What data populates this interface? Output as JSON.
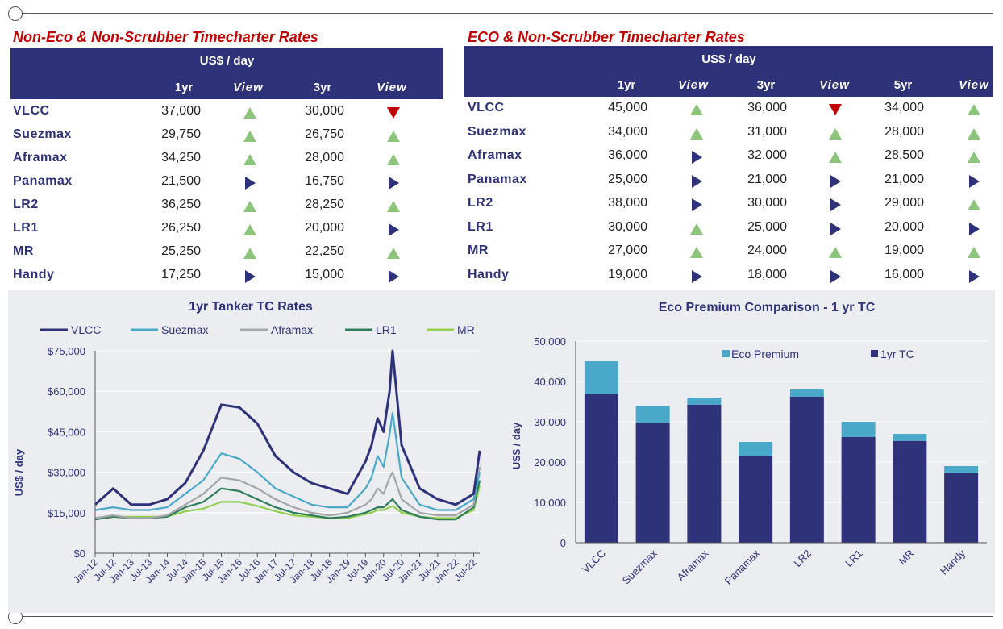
{
  "left_title": "Non-Eco & Non-Scrubber Timecharter Rates",
  "right_title": "ECO & Non-Scrubber Timecharter Rates",
  "unit": "US$ / day",
  "left_headers": [
    "1yr",
    "View",
    "3yr",
    "View"
  ],
  "right_headers": [
    "1yr",
    "View",
    "3yr",
    "View",
    "5yr",
    "View"
  ],
  "colors": {
    "navy": "#2e3278",
    "up": "#8bc47a",
    "down": "#c00000",
    "eco": "#4aa8c8"
  },
  "left_rows": [
    {
      "name": "VLCC",
      "y1": "37,000",
      "v1": "up",
      "y3": "30,000",
      "v3": "down"
    },
    {
      "name": "Suezmax",
      "y1": "29,750",
      "v1": "up",
      "y3": "26,750",
      "v3": "up"
    },
    {
      "name": "Aframax",
      "y1": "34,250",
      "v1": "up",
      "y3": "28,000",
      "v3": "up"
    },
    {
      "name": "Panamax",
      "y1": "21,500",
      "v1": "flat",
      "y3": "16,750",
      "v3": "flat"
    },
    {
      "name": "LR2",
      "y1": "36,250",
      "v1": "up",
      "y3": "28,250",
      "v3": "up"
    },
    {
      "name": "LR1",
      "y1": "26,250",
      "v1": "up",
      "y3": "20,000",
      "v3": "flat"
    },
    {
      "name": "MR",
      "y1": "25,250",
      "v1": "up",
      "y3": "22,250",
      "v3": "up"
    },
    {
      "name": "Handy",
      "y1": "17,250",
      "v1": "flat",
      "y3": "15,000",
      "v3": "flat"
    }
  ],
  "right_rows": [
    {
      "name": "VLCC",
      "y1": "45,000",
      "v1": "up",
      "y3": "36,000",
      "v3": "down",
      "y5": "34,000",
      "v5": "up"
    },
    {
      "name": "Suezmax",
      "y1": "34,000",
      "v1": "up",
      "y3": "31,000",
      "v3": "up",
      "y5": "28,000",
      "v5": "up"
    },
    {
      "name": "Aframax",
      "y1": "36,000",
      "v1": "flat",
      "y3": "32,000",
      "v3": "up",
      "y5": "28,500",
      "v5": "up"
    },
    {
      "name": "Panamax",
      "y1": "25,000",
      "v1": "flat",
      "y3": "21,000",
      "v3": "flat",
      "y5": "21,000",
      "v5": "flat"
    },
    {
      "name": "LR2",
      "y1": "38,000",
      "v1": "flat",
      "y3": "30,000",
      "v3": "flat",
      "y5": "29,000",
      "v5": "up"
    },
    {
      "name": "LR1",
      "y1": "30,000",
      "v1": "up",
      "y3": "25,000",
      "v3": "flat",
      "y5": "20,000",
      "v5": "flat"
    },
    {
      "name": "MR",
      "y1": "27,000",
      "v1": "up",
      "y3": "24,000",
      "v3": "up",
      "y5": "19,000",
      "v5": "up"
    },
    {
      "name": "Handy",
      "y1": "19,000",
      "v1": "flat",
      "y3": "18,000",
      "v3": "flat",
      "y5": "16,000",
      "v5": "flat"
    }
  ],
  "chart_data": [
    {
      "type": "line",
      "title": "1yr Tanker TC Rates",
      "ylabel": "US$ / day",
      "xlabel": "",
      "ylim": [
        0,
        75000
      ],
      "yticks": [
        "$0",
        "$15,000",
        "$30,000",
        "$45,000",
        "$60,000",
        "$75,000"
      ],
      "xticks": [
        "Jan-12",
        "Jul-12",
        "Jan-13",
        "Jul-13",
        "Jan-14",
        "Jul-14",
        "Jan-15",
        "Jul-15",
        "Jan-16",
        "Jul-16",
        "Jan-17",
        "Jul-17",
        "Jan-18",
        "Jul-18",
        "Jan-19",
        "Jul-19",
        "Jan-20",
        "Jul-20",
        "Jan-21",
        "Jul-21",
        "Jan-22",
        "Jul-22"
      ],
      "legend_position": "top",
      "x_dates": [
        "Jan-12",
        "Jul-12",
        "Jan-13",
        "Jul-13",
        "Jan-14",
        "Jul-14",
        "Jan-15",
        "Jul-15",
        "Jan-16",
        "Jul-16",
        "Jan-17",
        "Jul-17",
        "Jan-18",
        "Jul-18",
        "Jan-19",
        "Jul-19",
        "Sep-19",
        "Nov-19",
        "Jan-20",
        "Mar-20",
        "Apr-20",
        "Jul-20",
        "Jan-21",
        "Jul-21",
        "Jan-22",
        "Jul-22",
        "Sep-22"
      ],
      "series": [
        {
          "name": "VLCC",
          "color": "#2e3278",
          "values": [
            18000,
            24000,
            18000,
            18000,
            20000,
            26000,
            38000,
            55000,
            54000,
            48000,
            36000,
            30000,
            26000,
            24000,
            22000,
            34000,
            40000,
            50000,
            45000,
            60000,
            75000,
            40000,
            24000,
            20000,
            18000,
            22000,
            38000
          ]
        },
        {
          "name": "Suezmax",
          "color": "#4aa8c8",
          "values": [
            16000,
            17000,
            16000,
            16000,
            17000,
            22000,
            27000,
            37000,
            35000,
            30000,
            24000,
            21000,
            18000,
            17000,
            17000,
            24000,
            28000,
            36000,
            32000,
            44000,
            52000,
            28000,
            18000,
            16000,
            16000,
            20000,
            30000
          ]
        },
        {
          "name": "Aframax",
          "color": "#a6a6a6",
          "values": [
            13000,
            14000,
            13000,
            13000,
            14000,
            18000,
            22000,
            28000,
            27000,
            24000,
            20000,
            17000,
            15000,
            14000,
            15000,
            18000,
            20000,
            24000,
            22000,
            28000,
            30000,
            20000,
            15000,
            14000,
            14000,
            18000,
            32000
          ]
        },
        {
          "name": "LR1",
          "color": "#2f7d5a",
          "values": [
            12500,
            13500,
            13000,
            13000,
            13500,
            17000,
            19000,
            24000,
            23000,
            20000,
            17000,
            15000,
            14000,
            13000,
            13500,
            15000,
            16000,
            17000,
            17000,
            19000,
            20000,
            16000,
            13500,
            12500,
            12500,
            17000,
            27000
          ]
        },
        {
          "name": "MR",
          "color": "#92d050",
          "values": [
            13000,
            13500,
            13500,
            13500,
            13500,
            15500,
            16500,
            19000,
            19000,
            17500,
            15500,
            14000,
            13500,
            13000,
            13000,
            14500,
            15000,
            16000,
            16000,
            17000,
            17500,
            15000,
            13500,
            13000,
            13000,
            16000,
            25000
          ]
        }
      ]
    },
    {
      "type": "bar",
      "title": "Eco Premium Comparison - 1 yr TC",
      "ylabel": "US$ / day",
      "xlabel": "",
      "ylim": [
        0,
        50000
      ],
      "yticks": [
        "0",
        "10,000",
        "20,000",
        "30,000",
        "40,000",
        "50,000"
      ],
      "legend_position": "top-right",
      "stacked": true,
      "categories": [
        "VLCC",
        "Suezmax",
        "Aframax",
        "Panamax",
        "LR2",
        "LR1",
        "MR",
        "Handy"
      ],
      "series": [
        {
          "name": "1yr TC",
          "color": "#2e3278",
          "values": [
            37000,
            29750,
            34250,
            21500,
            36250,
            26250,
            25250,
            17250
          ]
        },
        {
          "name": "Eco Premium",
          "color": "#4aa8c8",
          "values": [
            8000,
            4250,
            1750,
            3500,
            1750,
            3750,
            1750,
            1750
          ]
        }
      ]
    }
  ]
}
